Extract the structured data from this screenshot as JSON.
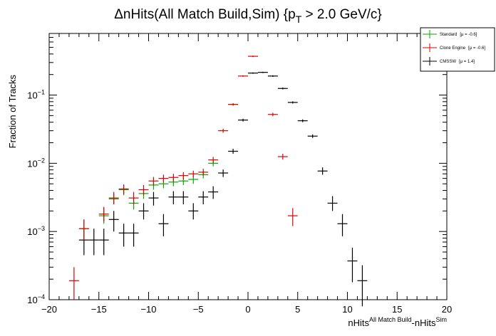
{
  "chart_data": {
    "type": "scatter",
    "title": "ΔnHits(All Match Build,Sim) {p",
    "title_sub": "T",
    "title_tail": " > 2.0 GeV/c}",
    "xlabel": "nHits",
    "xlabel_sup1": "All Match Build",
    "xlabel_mid": "-nHits",
    "xlabel_sup2": "Sim",
    "ylabel": "Fraction of Tracks",
    "xlim": [
      -20,
      20
    ],
    "ylim": [
      0.0001,
      0.8
    ],
    "yscale": "log",
    "x_ticks": [
      -20,
      -15,
      -10,
      -5,
      0,
      5,
      10,
      15,
      20
    ],
    "x_tick_labels": [
      "−20",
      "−15",
      "−10",
      "−5",
      "0",
      "5",
      "10",
      "15",
      "20"
    ],
    "y_ticks": [
      {
        "value": 0.0001,
        "base": "10",
        "exp": "−4"
      },
      {
        "value": 0.001,
        "base": "10",
        "exp": "−3"
      },
      {
        "value": 0.01,
        "base": "10",
        "exp": "−2"
      },
      {
        "value": 0.1,
        "base": "10",
        "exp": "−1"
      }
    ],
    "legend_position": "top-right",
    "series": [
      {
        "name": "Standard",
        "mu_label": "[μ = -0.6]",
        "color": "#00aa00",
        "points": [
          {
            "x": -16.5,
            "y": 0.0011,
            "ylo": 0.00075,
            "yhi": 0.0015
          },
          {
            "x": -14.5,
            "y": 0.0017,
            "ylo": 0.0013,
            "yhi": 0.0022
          },
          {
            "x": -13.5,
            "y": 0.003,
            "ylo": 0.0025,
            "yhi": 0.0036
          },
          {
            "x": -12.5,
            "y": 0.0041,
            "ylo": 0.0034,
            "yhi": 0.0048
          },
          {
            "x": -11.5,
            "y": 0.0026,
            "ylo": 0.0021,
            "yhi": 0.0032
          },
          {
            "x": -10.5,
            "y": 0.0036,
            "ylo": 0.003,
            "yhi": 0.0043
          },
          {
            "x": -9.5,
            "y": 0.0048,
            "ylo": 0.0041,
            "yhi": 0.0056
          },
          {
            "x": -8.5,
            "y": 0.005,
            "ylo": 0.0043,
            "yhi": 0.0058
          },
          {
            "x": -7.5,
            "y": 0.0053,
            "ylo": 0.0046,
            "yhi": 0.0061
          },
          {
            "x": -6.5,
            "y": 0.0055,
            "ylo": 0.0048,
            "yhi": 0.0063
          },
          {
            "x": -5.5,
            "y": 0.0058,
            "ylo": 0.005,
            "yhi": 0.0066
          },
          {
            "x": -4.5,
            "y": 0.0068,
            "ylo": 0.006,
            "yhi": 0.0077
          },
          {
            "x": -3.5,
            "y": 0.01,
            "ylo": 0.009,
            "yhi": 0.011
          },
          {
            "x": -1.5,
            "y": 0.073,
            "ylo": 0.07,
            "yhi": 0.076
          }
        ]
      },
      {
        "name": "Clone Engine",
        "mu_label": "[μ = -0.6]",
        "color": "#dd0000",
        "points": [
          {
            "x": -17.5,
            "y": 0.00019,
            "ylo": 0.0001,
            "yhi": 0.0003
          },
          {
            "x": -16.5,
            "y": 0.0011,
            "ylo": 0.00075,
            "yhi": 0.0015
          },
          {
            "x": -14.5,
            "y": 0.0018,
            "ylo": 0.0014,
            "yhi": 0.0023
          },
          {
            "x": -13.5,
            "y": 0.0031,
            "ylo": 0.0025,
            "yhi": 0.0038
          },
          {
            "x": -12.5,
            "y": 0.0042,
            "ylo": 0.0035,
            "yhi": 0.0049
          },
          {
            "x": -11.5,
            "y": 0.0031,
            "ylo": 0.0025,
            "yhi": 0.0038
          },
          {
            "x": -10.5,
            "y": 0.0041,
            "ylo": 0.0034,
            "yhi": 0.0048
          },
          {
            "x": -9.5,
            "y": 0.0055,
            "ylo": 0.0047,
            "yhi": 0.0063
          },
          {
            "x": -8.5,
            "y": 0.006,
            "ylo": 0.0052,
            "yhi": 0.0068
          },
          {
            "x": -7.5,
            "y": 0.0062,
            "ylo": 0.0054,
            "yhi": 0.007
          },
          {
            "x": -6.5,
            "y": 0.0066,
            "ylo": 0.0058,
            "yhi": 0.0074
          },
          {
            "x": -5.5,
            "y": 0.007,
            "ylo": 0.0062,
            "yhi": 0.0078
          },
          {
            "x": -4.5,
            "y": 0.0074,
            "ylo": 0.0066,
            "yhi": 0.0083
          },
          {
            "x": -3.5,
            "y": 0.0112,
            "ylo": 0.0101,
            "yhi": 0.0124
          },
          {
            "x": -2.5,
            "y": 0.03,
            "ylo": 0.028,
            "yhi": 0.032
          },
          {
            "x": -1.5,
            "y": 0.073,
            "ylo": 0.07,
            "yhi": 0.076
          },
          {
            "x": -0.5,
            "y": 0.19,
            "ylo": 0.185,
            "yhi": 0.195
          },
          {
            "x": 0.5,
            "y": 0.37,
            "ylo": 0.36,
            "yhi": 0.38
          },
          {
            "x": 2.5,
            "y": 0.052,
            "ylo": 0.049,
            "yhi": 0.055
          },
          {
            "x": 3.5,
            "y": 0.0125,
            "ylo": 0.0113,
            "yhi": 0.0138
          },
          {
            "x": 4.5,
            "y": 0.0017,
            "ylo": 0.0012,
            "yhi": 0.0022
          }
        ]
      },
      {
        "name": "CMSSW",
        "mu_label": "[μ = 1.4]",
        "color": "#000000",
        "points": [
          {
            "x": -16.5,
            "y": 0.00075,
            "ylo": 0.00045,
            "yhi": 0.0011
          },
          {
            "x": -15.5,
            "y": 0.00075,
            "ylo": 0.00045,
            "yhi": 0.0011
          },
          {
            "x": -14.5,
            "y": 0.00075,
            "ylo": 0.00045,
            "yhi": 0.0011
          },
          {
            "x": -13.5,
            "y": 0.0015,
            "ylo": 0.001,
            "yhi": 0.002
          },
          {
            "x": -12.5,
            "y": 0.00095,
            "ylo": 0.0006,
            "yhi": 0.0013
          },
          {
            "x": -11.5,
            "y": 0.00095,
            "ylo": 0.0006,
            "yhi": 0.0013
          },
          {
            "x": -10.5,
            "y": 0.002,
            "ylo": 0.0015,
            "yhi": 0.0026
          },
          {
            "x": -9.5,
            "y": 0.0031,
            "ylo": 0.0024,
            "yhi": 0.0038
          },
          {
            "x": -8.5,
            "y": 0.0013,
            "ylo": 0.00085,
            "yhi": 0.0018
          },
          {
            "x": -7.5,
            "y": 0.0032,
            "ylo": 0.0025,
            "yhi": 0.0039
          },
          {
            "x": -6.5,
            "y": 0.0032,
            "ylo": 0.0025,
            "yhi": 0.0039
          },
          {
            "x": -5.5,
            "y": 0.002,
            "ylo": 0.0015,
            "yhi": 0.0026
          },
          {
            "x": -4.5,
            "y": 0.0032,
            "ylo": 0.0025,
            "yhi": 0.0039
          },
          {
            "x": -3.5,
            "y": 0.0038,
            "ylo": 0.003,
            "yhi": 0.0046
          },
          {
            "x": -2.5,
            "y": 0.0072,
            "ylo": 0.0063,
            "yhi": 0.0081
          },
          {
            "x": -1.5,
            "y": 0.015,
            "ylo": 0.0138,
            "yhi": 0.0163
          },
          {
            "x": -0.5,
            "y": 0.043,
            "ylo": 0.041,
            "yhi": 0.045
          },
          {
            "x": 0.5,
            "y": 0.21,
            "ylo": 0.205,
            "yhi": 0.215
          },
          {
            "x": 1.5,
            "y": 0.215,
            "ylo": 0.21,
            "yhi": 0.22
          },
          {
            "x": 2.5,
            "y": 0.19,
            "ylo": 0.185,
            "yhi": 0.195
          },
          {
            "x": 3.5,
            "y": 0.125,
            "ylo": 0.121,
            "yhi": 0.129
          },
          {
            "x": 4.5,
            "y": 0.078,
            "ylo": 0.075,
            "yhi": 0.081
          },
          {
            "x": 5.5,
            "y": 0.042,
            "ylo": 0.04,
            "yhi": 0.044
          },
          {
            "x": 6.5,
            "y": 0.025,
            "ylo": 0.0235,
            "yhi": 0.0265
          },
          {
            "x": 7.5,
            "y": 0.0077,
            "ylo": 0.0068,
            "yhi": 0.0087
          },
          {
            "x": 8.5,
            "y": 0.0026,
            "ylo": 0.002,
            "yhi": 0.0033
          },
          {
            "x": 9.5,
            "y": 0.0013,
            "ylo": 0.00085,
            "yhi": 0.0018
          },
          {
            "x": 10.5,
            "y": 0.00037,
            "ylo": 0.00018,
            "yhi": 0.00058
          },
          {
            "x": 11.5,
            "y": 0.00019,
            "ylo": 8e-05,
            "yhi": 0.00032
          }
        ]
      }
    ]
  }
}
